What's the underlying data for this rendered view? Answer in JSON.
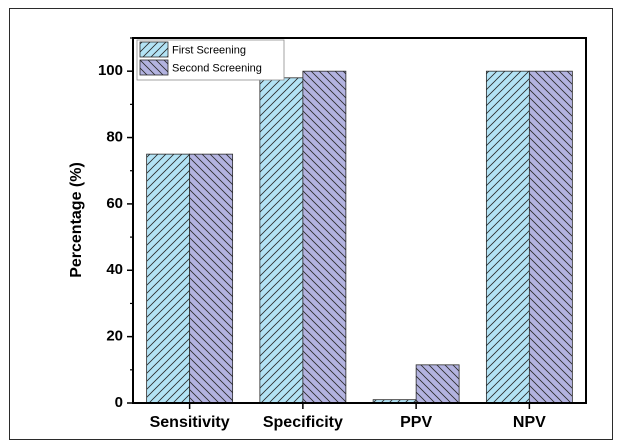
{
  "chart_data": {
    "type": "bar",
    "title": "",
    "xlabel": "",
    "ylabel": "Percentage (%)",
    "ylim": [
      0,
      110
    ],
    "yticks": [
      0,
      20,
      40,
      60,
      80,
      100
    ],
    "categories": [
      "Sensitivity",
      "Specificity",
      "PPV",
      "NPV"
    ],
    "series": [
      {
        "name": "First Screening",
        "values": [
          75,
          98,
          1,
          100
        ],
        "color": "#b3e3f5",
        "hatch": "forward-diagonal"
      },
      {
        "name": "Second Screening",
        "values": [
          75,
          100,
          11.5,
          100
        ],
        "color": "#b3b3e0",
        "hatch": "backward-diagonal"
      }
    ],
    "legend": "top-left",
    "grid": false
  }
}
